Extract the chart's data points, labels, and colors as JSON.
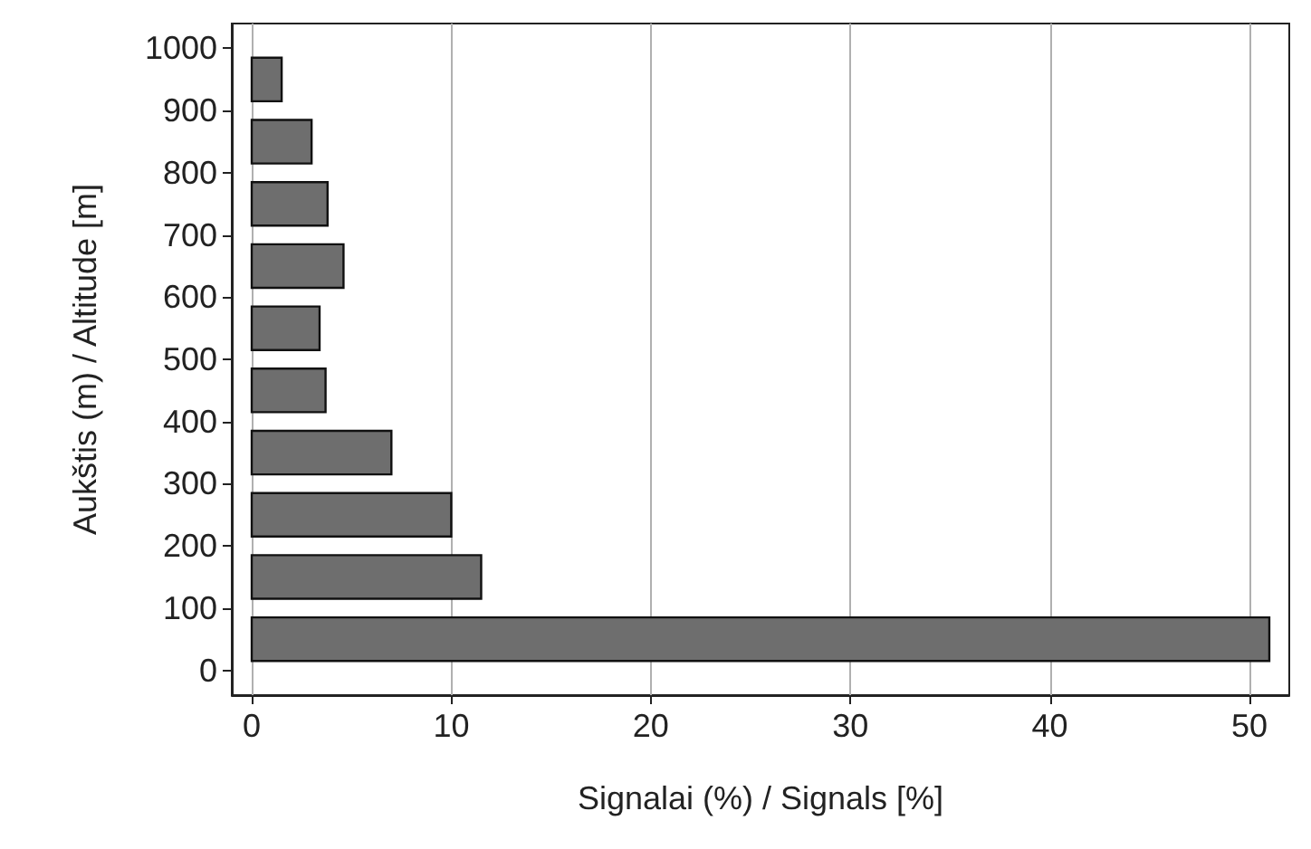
{
  "chart_data": {
    "type": "histogram",
    "orientation": "horizontal",
    "bins": [
      0,
      100,
      200,
      300,
      400,
      500,
      600,
      700,
      800,
      900,
      1000
    ],
    "values": [
      51,
      11.5,
      10,
      7,
      3.7,
      3.4,
      4.6,
      3.8,
      3,
      1.5
    ],
    "color": "#6e6e6e",
    "xlim": [
      -1,
      52
    ],
    "xticks": [
      0,
      10,
      20,
      30,
      40,
      50
    ],
    "ylim": [
      -40,
      1040
    ],
    "yticks": [
      0,
      100,
      200,
      300,
      400,
      500,
      600,
      700,
      800,
      900,
      1000
    ],
    "xlabel": "Signalai (%) / Signals [%]",
    "ylabel": "Aukštis (m) / Altitude [m]",
    "grid": "x"
  }
}
